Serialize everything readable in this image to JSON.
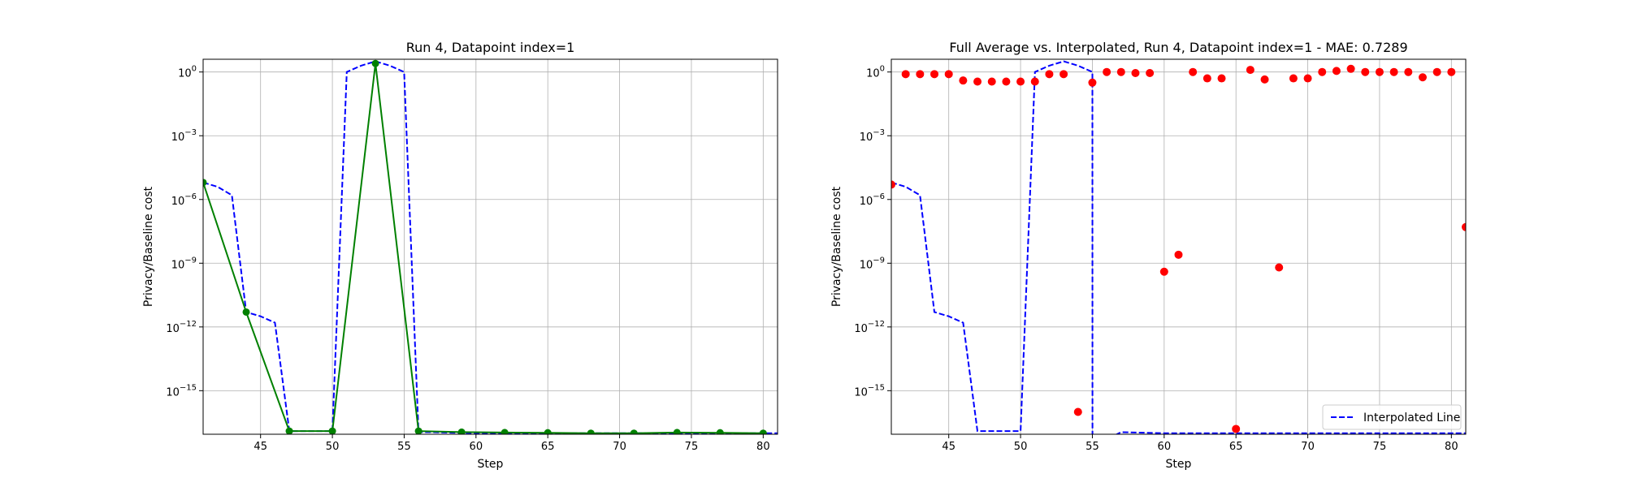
{
  "chart_data": [
    {
      "type": "line",
      "title": "Run 4, Datapoint index=1",
      "xlabel": "Step",
      "ylabel": "Privacy/Baseline cost",
      "xlim": [
        41,
        81
      ],
      "ylog": true,
      "ylim_log10": [
        -17.05,
        0.6
      ],
      "grid": true,
      "x_ticks": [
        45,
        50,
        55,
        60,
        65,
        70,
        75,
        80
      ],
      "y_ticks": [
        {
          "exp": 0,
          "label": "10^0"
        },
        {
          "exp": -3,
          "label": "10^-3"
        },
        {
          "exp": -6,
          "label": "10^-6"
        },
        {
          "exp": -9,
          "label": "10^-9"
        },
        {
          "exp": -12,
          "label": "10^-12"
        },
        {
          "exp": -15,
          "label": "10^-15"
        }
      ],
      "series": [
        {
          "style": "dashed",
          "color": "#0000ff",
          "x": [
            41,
            42,
            43,
            44,
            45,
            46,
            47,
            48,
            49,
            50,
            51,
            52,
            53,
            54,
            55,
            56,
            57,
            58,
            59,
            60,
            62,
            65,
            68,
            71,
            74,
            77,
            80,
            81
          ],
          "log10_y": [
            -5.2,
            -5.4,
            -5.8,
            -11.3,
            -11.5,
            -11.8,
            -16.9,
            -16.9,
            -16.9,
            -16.9,
            0.0,
            0.3,
            0.5,
            0.3,
            0.0,
            -16.95,
            -16.95,
            -16.97,
            -16.98,
            -17.0,
            -17.0,
            -17.0,
            -17.0,
            -17.0,
            -17.0,
            -17.0,
            -17.0,
            -17.0
          ]
        },
        {
          "style": "solid-markers",
          "color": "#008000",
          "x": [
            41,
            44,
            47,
            50,
            53,
            56,
            59,
            62,
            65,
            68,
            71,
            74,
            77,
            80
          ],
          "log10_y": [
            -5.2,
            -11.3,
            -16.9,
            -16.9,
            0.4,
            -16.9,
            -16.95,
            -16.97,
            -16.98,
            -17.0,
            -17.0,
            -16.97,
            -16.98,
            -17.0
          ]
        }
      ]
    },
    {
      "type": "line",
      "title": "Full Average vs. Interpolated, Run 4, Datapoint index=1 - MAE: 0.7289",
      "xlabel": "Step",
      "ylabel": "Privacy/Baseline cost",
      "xlim": [
        41,
        81
      ],
      "ylog": true,
      "ylim_log10": [
        -17.05,
        0.6
      ],
      "grid": true,
      "legend": {
        "position": "lower-right",
        "entries": [
          "Interpolated Line"
        ]
      },
      "x_ticks": [
        45,
        50,
        55,
        60,
        65,
        70,
        75,
        80
      ],
      "y_ticks": [
        {
          "exp": 0,
          "label": "10^0"
        },
        {
          "exp": -3,
          "label": "10^-3"
        },
        {
          "exp": -6,
          "label": "10^-6"
        },
        {
          "exp": -9,
          "label": "10^-9"
        },
        {
          "exp": -12,
          "label": "10^-12"
        },
        {
          "exp": -15,
          "label": "10^-15"
        }
      ],
      "series": [
        {
          "name": "Interpolated Line",
          "style": "dashed",
          "color": "#0000ff",
          "x": [
            41,
            42,
            43,
            44,
            45,
            46,
            47,
            48,
            49,
            50,
            51,
            52,
            53,
            54,
            55,
            55.01,
            56,
            57,
            58,
            60,
            65,
            70,
            75,
            80,
            81
          ],
          "log10_y": [
            -5.2,
            -5.4,
            -5.8,
            -11.3,
            -11.5,
            -11.8,
            -16.9,
            -16.9,
            -16.9,
            -16.9,
            0.0,
            0.3,
            0.5,
            0.3,
            0.0,
            -17.3,
            -17.3,
            -16.95,
            -16.97,
            -17.0,
            -17.0,
            -17.0,
            -17.0,
            -17.0,
            -17.0
          ]
        },
        {
          "style": "scatter",
          "color": "#ff0000",
          "x": [
            41,
            42,
            43,
            44,
            45,
            46,
            47,
            48,
            49,
            50,
            51,
            52,
            53,
            54,
            55,
            56,
            57,
            58,
            59,
            60,
            61,
            62,
            63,
            64,
            65,
            66,
            67,
            68,
            69,
            70,
            71,
            72,
            73,
            74,
            75,
            76,
            77,
            78,
            79,
            80,
            81
          ],
          "log10_y": [
            -5.3,
            -0.1,
            -0.1,
            -0.1,
            -0.1,
            -0.4,
            -0.45,
            -0.45,
            -0.45,
            -0.45,
            -0.45,
            -0.1,
            -0.1,
            -16.0,
            -0.5,
            0.0,
            0.0,
            -0.05,
            -0.05,
            -9.4,
            -8.6,
            0.0,
            -0.3,
            -0.3,
            -16.8,
            0.1,
            -0.35,
            -9.2,
            -0.3,
            -0.3,
            0.0,
            0.05,
            0.15,
            0.0,
            0.0,
            0.0,
            0.0,
            -0.25,
            0.0,
            0.0,
            -7.3
          ]
        }
      ]
    }
  ]
}
